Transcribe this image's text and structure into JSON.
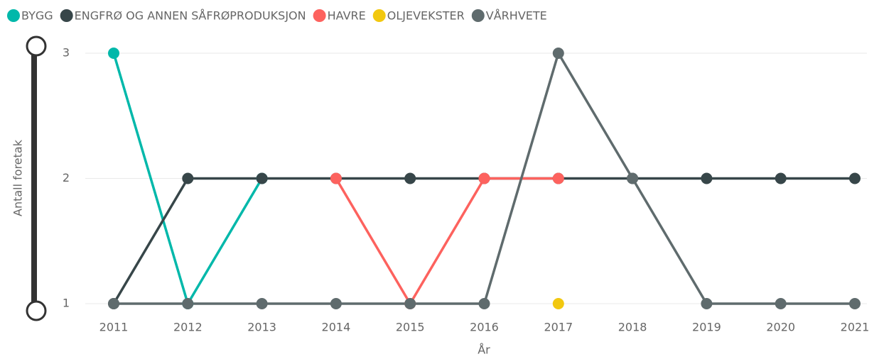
{
  "chart_data": {
    "type": "line",
    "y_axis_label": "Antall foretak",
    "x_axis_label": "År",
    "categories": [
      "2011",
      "2012",
      "2013",
      "2014",
      "2015",
      "2016",
      "2017",
      "2018",
      "2019",
      "2020",
      "2021"
    ],
    "series": [
      {
        "name": "BYGG",
        "color": "#01B8AA",
        "values": [
          3,
          1,
          2,
          null,
          null,
          null,
          null,
          null,
          null,
          null,
          null
        ]
      },
      {
        "name": "ENGFRØ OG ANNEN SÅFRØPRODUKSJON",
        "color": "#374649",
        "values": [
          1,
          2,
          2,
          2,
          2,
          2,
          2,
          2,
          2,
          2,
          2
        ]
      },
      {
        "name": "HAVRE",
        "color": "#FD625E",
        "values": [
          null,
          null,
          null,
          2,
          1,
          2,
          2,
          null,
          null,
          null,
          null
        ]
      },
      {
        "name": "OLJEVEKSTER",
        "color": "#F2C80F",
        "values": [
          null,
          null,
          null,
          null,
          null,
          null,
          1,
          null,
          null,
          null,
          null
        ]
      },
      {
        "name": "VÅRHVETE",
        "color": "#5F6B6D",
        "values": [
          1,
          1,
          1,
          1,
          1,
          1,
          3,
          2,
          1,
          1,
          1
        ]
      }
    ],
    "ylim": [
      1,
      3
    ],
    "yticks": [
      1,
      2,
      3
    ],
    "grid": true,
    "legend": "top-left"
  }
}
